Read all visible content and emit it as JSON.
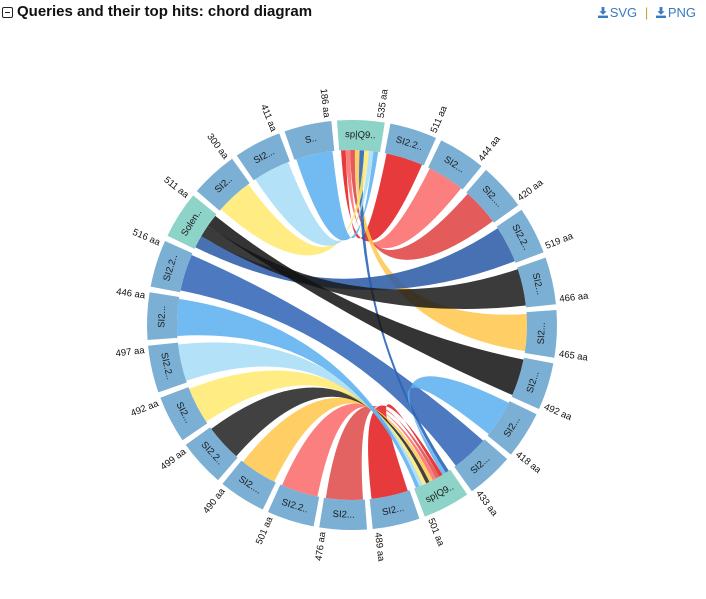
{
  "header": {
    "title": "Queries and their top hits: chord diagram",
    "svg_label": "SVG",
    "png_label": "PNG",
    "separator": "|"
  },
  "colors": {
    "query_segment": "#8dd3c7",
    "hit_segment": "#7bafd4",
    "link": "#3a7ac0"
  },
  "chart_data": {
    "type": "chord",
    "segments": [
      {
        "label": "sp|Q9..",
        "length": "535 aa",
        "kind": "query",
        "color": "#8dd3c7"
      },
      {
        "label": "SI2.2..",
        "length": "511 aa",
        "kind": "hit",
        "color": "#7bafd4"
      },
      {
        "label": "SI2...",
        "length": "444 aa",
        "kind": "hit",
        "color": "#7bafd4"
      },
      {
        "label": "SI2....",
        "length": "420 aa",
        "kind": "hit",
        "color": "#7bafd4"
      },
      {
        "label": "SI2.2..",
        "length": "519 aa",
        "kind": "hit",
        "color": "#7bafd4"
      },
      {
        "label": "SI2...",
        "length": "466 aa",
        "kind": "hit",
        "color": "#7bafd4"
      },
      {
        "label": "SI2...",
        "length": "465 aa",
        "kind": "hit",
        "color": "#7bafd4"
      },
      {
        "label": "SI2...",
        "length": "492 aa",
        "kind": "hit",
        "color": "#7bafd4"
      },
      {
        "label": "SI2...",
        "length": "418 aa",
        "kind": "hit",
        "color": "#7bafd4"
      },
      {
        "label": "SI2...",
        "length": "433 aa",
        "kind": "hit",
        "color": "#7bafd4"
      },
      {
        "label": "sp|Q9..",
        "length": "501 aa",
        "kind": "query",
        "color": "#8dd3c7"
      },
      {
        "label": "SI2...",
        "length": "489 aa",
        "kind": "hit",
        "color": "#7bafd4"
      },
      {
        "label": "SI2...",
        "length": "476 aa",
        "kind": "hit",
        "color": "#7bafd4"
      },
      {
        "label": "SI2.2..",
        "length": "501 aa",
        "kind": "hit",
        "color": "#7bafd4"
      },
      {
        "label": "SI2....",
        "length": "490 aa",
        "kind": "hit",
        "color": "#7bafd4"
      },
      {
        "label": "SI2.2..",
        "length": "499 aa",
        "kind": "hit",
        "color": "#7bafd4"
      },
      {
        "label": "SI2...",
        "length": "492 aa",
        "kind": "hit",
        "color": "#7bafd4"
      },
      {
        "label": "SI2.2..",
        "length": "497 aa",
        "kind": "hit",
        "color": "#7bafd4"
      },
      {
        "label": "SI2...",
        "length": "446 aa",
        "kind": "hit",
        "color": "#7bafd4"
      },
      {
        "label": "SI2.2..",
        "length": "516 aa",
        "kind": "hit",
        "color": "#7bafd4"
      },
      {
        "label": "Solen..",
        "length": "511 aa",
        "kind": "query",
        "color": "#8dd3c7"
      },
      {
        "label": "SI2..",
        "length": "300 aa",
        "kind": "hit",
        "color": "#7bafd4"
      },
      {
        "label": "SI2...",
        "length": "411 aa",
        "kind": "hit",
        "color": "#7bafd4"
      },
      {
        "label": "S..",
        "length": "186 aa",
        "kind": "hit",
        "color": "#7bafd4"
      }
    ],
    "links": [
      {
        "source": 0,
        "target": 1,
        "color": "#e31a1c"
      },
      {
        "source": 0,
        "target": 2,
        "color": "#fb6a6a"
      },
      {
        "source": 0,
        "target": 3,
        "color": "#de4040"
      },
      {
        "source": 0,
        "target": 6,
        "color": "#ffc64a"
      },
      {
        "source": 0,
        "target": 10,
        "color": "#1f5fb4"
      },
      {
        "source": 0,
        "target": 21,
        "color": "#ffea70"
      },
      {
        "source": 0,
        "target": 22,
        "color": "#a6dcf7"
      },
      {
        "source": 0,
        "target": 23,
        "color": "#5aaff0"
      },
      {
        "source": 19,
        "target": 9,
        "color": "#2f63b4"
      },
      {
        "source": 20,
        "target": 4,
        "color": "#2a5aa8"
      },
      {
        "source": 20,
        "target": 5,
        "color": "#1b1b1b"
      },
      {
        "source": 20,
        "target": 7,
        "color": "#131313"
      },
      {
        "source": 10,
        "target": 8,
        "color": "#5aaff0"
      },
      {
        "source": 10,
        "target": 11,
        "color": "#e31a1c"
      },
      {
        "source": 10,
        "target": 12,
        "color": "#de4848"
      },
      {
        "source": 10,
        "target": 13,
        "color": "#fb6a6a"
      },
      {
        "source": 10,
        "target": 14,
        "color": "#ffc64a"
      },
      {
        "source": 10,
        "target": 15,
        "color": "#222222"
      },
      {
        "source": 10,
        "target": 16,
        "color": "#ffea70"
      },
      {
        "source": 10,
        "target": 17,
        "color": "#a6dcf7"
      },
      {
        "source": 10,
        "target": 18,
        "color": "#5aaff0"
      }
    ]
  }
}
